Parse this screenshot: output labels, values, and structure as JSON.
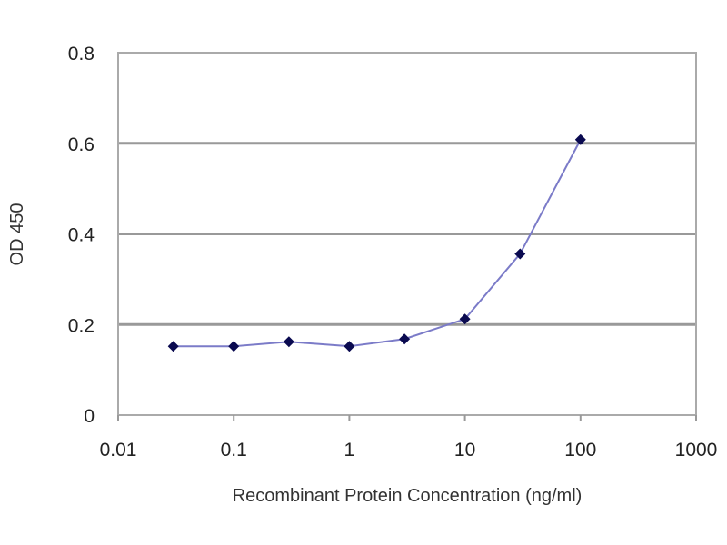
{
  "chart_data": {
    "type": "line",
    "title": "",
    "xlabel": "Recombinant Protein Concentration (ng/ml)",
    "ylabel": "OD 450",
    "x_scale": "log",
    "xlim": [
      0.01,
      1000
    ],
    "ylim": [
      0,
      0.8
    ],
    "x_ticks": [
      "0.01",
      "0.1",
      "1",
      "10",
      "100",
      "1000"
    ],
    "x_tick_values": [
      0.01,
      0.1,
      1,
      10,
      100,
      1000
    ],
    "y_ticks": [
      "0",
      "0.2",
      "0.4",
      "0.6",
      "0.8"
    ],
    "y_tick_values": [
      0,
      0.2,
      0.4,
      0.6,
      0.8
    ],
    "grid": "horizontal",
    "legend": "none",
    "series": [
      {
        "x": [
          0.03,
          0.1,
          0.3,
          1,
          3,
          10,
          30,
          100
        ],
        "y": [
          0.152,
          0.152,
          0.162,
          0.152,
          0.168,
          0.212,
          0.356,
          0.608
        ],
        "line_color": "#7b7bc8",
        "marker_color": "#0a0a50",
        "marker": "diamond"
      }
    ]
  }
}
